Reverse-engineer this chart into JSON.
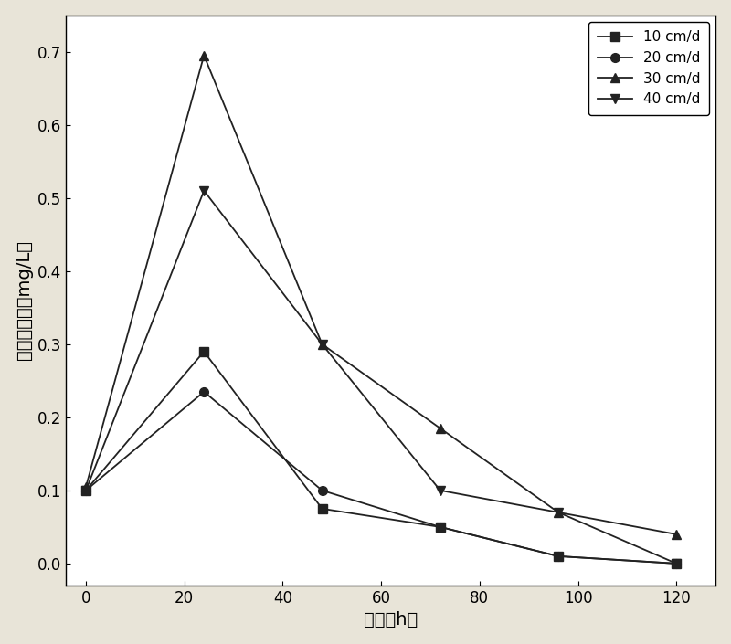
{
  "x": [
    0,
    24,
    48,
    72,
    96,
    120
  ],
  "series": [
    {
      "label": "10 cm/d",
      "values": [
        0.1,
        0.29,
        0.075,
        0.05,
        0.01,
        0.0
      ],
      "marker": "s",
      "color": "#222222",
      "linestyle": "-"
    },
    {
      "label": "20 cm/d",
      "values": [
        0.1,
        0.235,
        0.1,
        0.05,
        0.01,
        0.0
      ],
      "marker": "o",
      "color": "#222222",
      "linestyle": "-"
    },
    {
      "label": "30 cm/d",
      "values": [
        0.105,
        0.695,
        0.3,
        0.185,
        0.07,
        0.04
      ],
      "marker": "^",
      "color": "#222222",
      "linestyle": "-"
    },
    {
      "label": "40 cm/d",
      "values": [
        0.1,
        0.51,
        0.3,
        0.1,
        0.07,
        0.0
      ],
      "marker": "v",
      "color": "#222222",
      "linestyle": "-"
    }
  ],
  "xlabel": "时间（h）",
  "ylabel": "亚硝酸盐氮（mg/L）",
  "xlim": [
    -4,
    128
  ],
  "ylim": [
    -0.03,
    0.75
  ],
  "xticks": [
    0,
    20,
    40,
    60,
    80,
    100,
    120
  ],
  "yticks": [
    0.0,
    0.1,
    0.2,
    0.3,
    0.4,
    0.5,
    0.6,
    0.7
  ],
  "figure_bg_color": "#e8e4d8",
  "plot_bg_color": "#ffffff",
  "label_fontsize": 14,
  "tick_fontsize": 12,
  "legend_fontsize": 11,
  "markersize": 7,
  "linewidth": 1.3
}
